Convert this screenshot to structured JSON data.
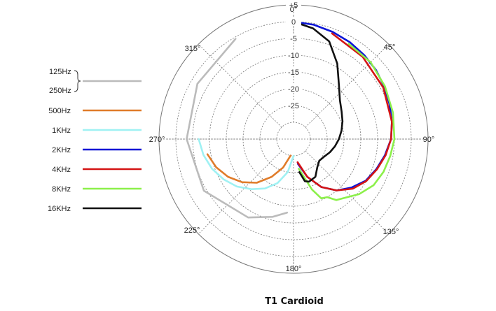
{
  "chart_data": {
    "type": "polar",
    "title": "T1 Cardioid",
    "radial_ticks": [
      "+5",
      "0",
      "-5",
      "-10",
      "-15",
      "-20",
      "-25"
    ],
    "radial_values": [
      5,
      0,
      -5,
      -10,
      -15,
      -20,
      -25
    ],
    "rlim": [
      -30,
      5
    ],
    "angle_labels": [
      {
        "angle": 0,
        "label": "0°"
      },
      {
        "angle": 45,
        "label": "45°"
      },
      {
        "angle": 90,
        "label": "90°"
      },
      {
        "angle": 135,
        "label": "135°"
      },
      {
        "angle": 180,
        "label": "180°"
      },
      {
        "angle": 225,
        "label": "225°"
      },
      {
        "angle": 270,
        "label": "270°"
      },
      {
        "angle": 315,
        "label": "315°"
      }
    ],
    "grid": true,
    "legend_position": "left",
    "legend_group": {
      "labels": [
        "125Hz",
        "250Hz"
      ],
      "color": "#bbbbbb"
    },
    "series": [
      {
        "name": "500Hz",
        "color": "#e07c2a",
        "points": [
          [
            190,
            -30
          ],
          [
            200,
            -26
          ],
          [
            210,
            -22
          ],
          [
            220,
            -18
          ],
          [
            230,
            -15
          ],
          [
            240,
            -12.5
          ],
          [
            250,
            -10.5
          ],
          [
            260,
            -9
          ]
        ]
      },
      {
        "name": "1KHz",
        "color": "#9ff1f3",
        "points": [
          [
            180,
            -30
          ],
          [
            190,
            -25
          ],
          [
            200,
            -21
          ],
          [
            210,
            -18
          ],
          [
            220,
            -15.5
          ],
          [
            230,
            -13
          ],
          [
            240,
            -11
          ],
          [
            250,
            -9.2
          ],
          [
            260,
            -7.8
          ],
          [
            270,
            -6.8
          ]
        ]
      },
      {
        "name": "2KHz",
        "color": "#0a14d6",
        "points": [
          [
            0,
            0
          ],
          [
            10,
            -0.4
          ],
          [
            20,
            -1
          ],
          [
            30,
            -1.6
          ],
          [
            40,
            -2.3
          ],
          [
            50,
            -3
          ],
          [
            60,
            -3.8
          ],
          [
            70,
            -4.6
          ],
          [
            80,
            -5.3
          ],
          [
            90,
            -6
          ],
          [
            100,
            -7.4
          ],
          [
            110,
            -8.8
          ],
          [
            120,
            -10.2
          ],
          [
            130,
            -12.5
          ],
          [
            140,
            -15
          ],
          [
            150,
            -18.5
          ],
          [
            160,
            -23
          ],
          [
            170,
            -27.5
          ]
        ]
      },
      {
        "name": "4KHz",
        "color": "#d41414",
        "points": [
          [
            20,
            -1.5
          ],
          [
            40,
            -3
          ],
          [
            60,
            -4.2
          ],
          [
            80,
            -5.3
          ],
          [
            90,
            -6
          ],
          [
            100,
            -7.2
          ],
          [
            110,
            -8.6
          ],
          [
            120,
            -10
          ],
          [
            130,
            -12
          ],
          [
            140,
            -15
          ],
          [
            150,
            -18.5
          ],
          [
            160,
            -23
          ],
          [
            170,
            -28
          ]
        ]
      },
      {
        "name": "8KHz",
        "color": "#8cf04a",
        "points": [
          [
            30,
            -2.2
          ],
          [
            45,
            -2.6
          ],
          [
            60,
            -3.6
          ],
          [
            75,
            -4.4
          ],
          [
            90,
            -5
          ],
          [
            100,
            -5.8
          ],
          [
            110,
            -6.5
          ],
          [
            120,
            -7.5
          ],
          [
            130,
            -9.5
          ],
          [
            140,
            -12
          ],
          [
            145,
            -12.8
          ],
          [
            150,
            -15
          ],
          [
            155,
            -15.5
          ],
          [
            160,
            -19
          ],
          [
            170,
            -26
          ]
        ]
      },
      {
        "name": "16KHz",
        "color": "#111111",
        "points": [
          [
            0,
            0
          ],
          [
            10,
            -1.5
          ],
          [
            20,
            -4
          ],
          [
            30,
            -9
          ],
          [
            40,
            -14
          ],
          [
            50,
            -17
          ],
          [
            60,
            -18.5
          ],
          [
            70,
            -19.5
          ],
          [
            80,
            -20.5
          ],
          [
            90,
            -21.5
          ],
          [
            100,
            -22.5
          ],
          [
            110,
            -23.5
          ],
          [
            120,
            -24.5
          ],
          [
            130,
            -25
          ],
          [
            140,
            -24
          ],
          [
            150,
            -22
          ],
          [
            160,
            -21.5
          ],
          [
            165,
            -22
          ],
          [
            170,
            -25
          ]
        ]
      },
      {
        "name": "125Hz / 250Hz",
        "color": "#bbbbbb",
        "points": [
          [
            330,
            -0.5
          ],
          [
            300,
            -2
          ],
          [
            270,
            -3.2
          ],
          [
            240,
            -4.2
          ],
          [
            210,
            -8
          ],
          [
            195,
            -11
          ],
          [
            185,
            -13
          ]
        ]
      }
    ]
  }
}
